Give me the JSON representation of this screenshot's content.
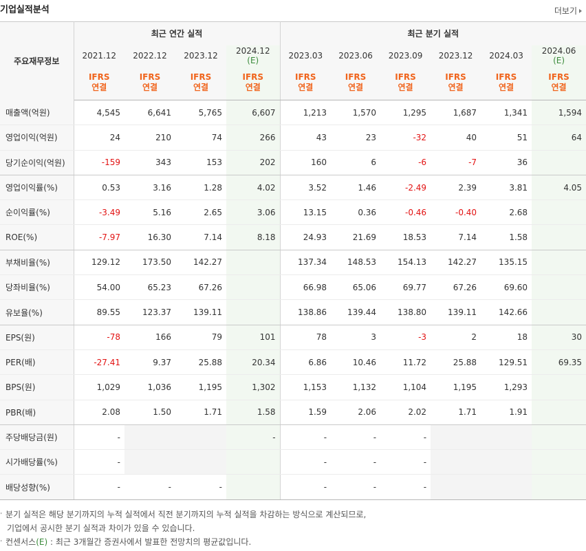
{
  "header": {
    "title": "기업실적분석",
    "more": "더보기"
  },
  "table": {
    "corner": "주요재무정보",
    "group_annual": "최근 연간 실적",
    "group_quarter": "최근 분기 실적",
    "periods": [
      {
        "label": "2021.12",
        "est": "",
        "std": "IFRS",
        "sub": "연결"
      },
      {
        "label": "2022.12",
        "est": "",
        "std": "IFRS",
        "sub": "연결"
      },
      {
        "label": "2023.12",
        "est": "",
        "std": "IFRS",
        "sub": "연결"
      },
      {
        "label": "2024.12",
        "est": "(E)",
        "std": "IFRS",
        "sub": "연결"
      },
      {
        "label": "2023.03",
        "est": "",
        "std": "IFRS",
        "sub": "연결"
      },
      {
        "label": "2023.06",
        "est": "",
        "std": "IFRS",
        "sub": "연결"
      },
      {
        "label": "2023.09",
        "est": "",
        "std": "IFRS",
        "sub": "연결"
      },
      {
        "label": "2023.12",
        "est": "",
        "std": "IFRS",
        "sub": "연결"
      },
      {
        "label": "2024.03",
        "est": "",
        "std": "IFRS",
        "sub": "연결"
      },
      {
        "label": "2024.06",
        "est": "(E)",
        "std": "IFRS",
        "sub": "연결"
      }
    ],
    "rows": [
      {
        "label": "매출액(억원)",
        "vals": [
          "4,545",
          "6,641",
          "5,765",
          "6,607",
          "1,213",
          "1,570",
          "1,295",
          "1,687",
          "1,341",
          "1,594"
        ]
      },
      {
        "label": "영업이익(억원)",
        "vals": [
          "24",
          "210",
          "74",
          "266",
          "43",
          "23",
          "-32",
          "40",
          "51",
          "64"
        ]
      },
      {
        "label": "당기순이익(억원)",
        "vals": [
          "-159",
          "343",
          "153",
          "202",
          "160",
          "6",
          "-6",
          "-7",
          "36",
          ""
        ]
      },
      {
        "label": "영업이익률(%)",
        "vals": [
          "0.53",
          "3.16",
          "1.28",
          "4.02",
          "3.52",
          "1.46",
          "-2.49",
          "2.39",
          "3.81",
          "4.05"
        ]
      },
      {
        "label": "순이익률(%)",
        "vals": [
          "-3.49",
          "5.16",
          "2.65",
          "3.06",
          "13.15",
          "0.36",
          "-0.46",
          "-0.40",
          "2.68",
          ""
        ]
      },
      {
        "label": "ROE(%)",
        "vals": [
          "-7.97",
          "16.30",
          "7.14",
          "8.18",
          "24.93",
          "21.69",
          "18.53",
          "7.14",
          "1.58",
          ""
        ]
      },
      {
        "label": "부채비율(%)",
        "vals": [
          "129.12",
          "173.50",
          "142.27",
          "",
          "137.34",
          "148.53",
          "154.13",
          "142.27",
          "135.15",
          ""
        ]
      },
      {
        "label": "당좌비율(%)",
        "vals": [
          "54.00",
          "65.23",
          "67.26",
          "",
          "66.98",
          "65.06",
          "69.77",
          "67.26",
          "69.60",
          ""
        ]
      },
      {
        "label": "유보율(%)",
        "vals": [
          "89.55",
          "123.37",
          "139.11",
          "",
          "138.86",
          "139.44",
          "138.80",
          "139.11",
          "142.66",
          ""
        ]
      },
      {
        "label": "EPS(원)",
        "vals": [
          "-78",
          "166",
          "79",
          "101",
          "78",
          "3",
          "-3",
          "2",
          "18",
          "30"
        ]
      },
      {
        "label": "PER(배)",
        "vals": [
          "-27.41",
          "9.37",
          "25.88",
          "20.34",
          "6.86",
          "10.46",
          "11.72",
          "25.88",
          "129.51",
          "69.35"
        ]
      },
      {
        "label": "BPS(원)",
        "vals": [
          "1,029",
          "1,036",
          "1,195",
          "1,302",
          "1,153",
          "1,132",
          "1,104",
          "1,195",
          "1,293",
          ""
        ]
      },
      {
        "label": "PBR(배)",
        "vals": [
          "2.08",
          "1.50",
          "1.71",
          "1.58",
          "1.59",
          "2.06",
          "2.02",
          "1.71",
          "1.91",
          ""
        ]
      },
      {
        "label": "주당배당금(원)",
        "vals": [
          "-",
          "",
          "",
          "-",
          "-",
          "-",
          "-",
          "",
          "",
          ""
        ]
      },
      {
        "label": "시가배당률(%)",
        "vals": [
          "-",
          "",
          "",
          "",
          "-",
          "-",
          "-",
          "",
          "",
          ""
        ]
      },
      {
        "label": "배당성향(%)",
        "vals": [
          "-",
          "-",
          "-",
          "",
          "-",
          "-",
          "-",
          "",
          "",
          ""
        ]
      }
    ],
    "grey_cells": [
      [
        13,
        1
      ],
      [
        13,
        2
      ],
      [
        14,
        1
      ],
      [
        14,
        2
      ],
      [
        13,
        7
      ],
      [
        13,
        8
      ],
      [
        14,
        7
      ],
      [
        14,
        8
      ],
      [
        15,
        7
      ],
      [
        15,
        8
      ]
    ],
    "group_after_rows": [
      2,
      5,
      8,
      12
    ]
  },
  "notes": {
    "line1": "분기 실적은 해당 분기까지의 누적 실적에서 직전 분기까지의 누적 실적을 차감하는 방식으로 계산되므로,",
    "line2": "기업에서 공시한 분기 실적과 차이가 있을 수 있습니다.",
    "line3_pre": "컨센서스",
    "line3_mark": "(E)",
    "line3_post": " : 최근 3개월간 증권사에서 발표한 전망치의 평균값입니다."
  }
}
